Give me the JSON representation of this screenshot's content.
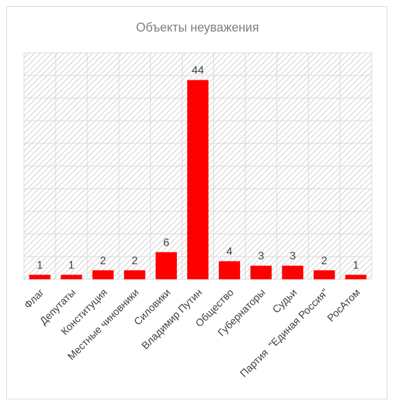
{
  "chart_data": {
    "type": "bar",
    "title": "Объекты неуважения",
    "categories": [
      "Флаг",
      "Депутаты",
      "Конституция",
      "Местные чиновники",
      "Силовики",
      "Владимир Путин",
      "Общество",
      "Губернаторы",
      "Судьи",
      "Партия  \"Единая Россия\"",
      "РосАтом"
    ],
    "values": [
      1,
      1,
      2,
      2,
      6,
      44,
      4,
      3,
      3,
      2,
      1
    ],
    "ylim": [
      0,
      50
    ],
    "bar_color": "#ff0000",
    "grid": true,
    "legend": "none",
    "data_labels": true
  }
}
